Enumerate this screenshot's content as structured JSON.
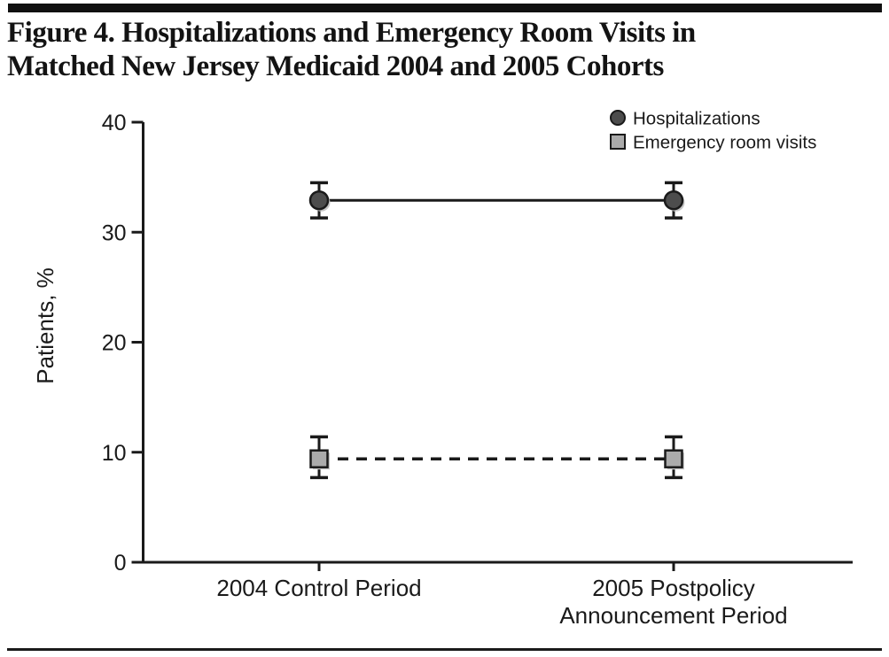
{
  "figure": {
    "title": "Figure 4. Hospitalizations and Emergency Room Visits in\nMatched New Jersey Medicaid 2004 and 2005 Cohorts"
  },
  "colors": {
    "ink": "#1a1a1a",
    "header_bar": "#111111",
    "footer_bar": "#1a1a1a",
    "hospitalizations_marker_fill": "#4d4d4d",
    "er_marker_fill": "#ababab",
    "marker_shadow": "#c6c6c6",
    "background": "#ffffff"
  },
  "chart_data": {
    "type": "line",
    "title": "",
    "xlabel": "",
    "ylabel": "Patients, %",
    "ylim": [
      0,
      40
    ],
    "yticks": [
      0,
      10,
      20,
      30,
      40
    ],
    "grid": false,
    "error_bars": true,
    "legend_position": "top-right",
    "categories": [
      "2004 Control Period",
      "2005 Postpolicy\nAnnouncement Period"
    ],
    "series": [
      {
        "name": "Hospitalizations",
        "marker": "circle",
        "line_style": "solid",
        "marker_fill": "#4d4d4d",
        "values": [
          32.9,
          32.9
        ],
        "ci_low": [
          31.3,
          31.3
        ],
        "ci_high": [
          34.5,
          34.5
        ]
      },
      {
        "name": "Emergency room visits",
        "marker": "square",
        "line_style": "dashed",
        "marker_fill": "#ababab",
        "values": [
          9.4,
          9.4
        ],
        "ci_low": [
          7.7,
          7.7
        ],
        "ci_high": [
          11.4,
          11.4
        ]
      }
    ]
  }
}
